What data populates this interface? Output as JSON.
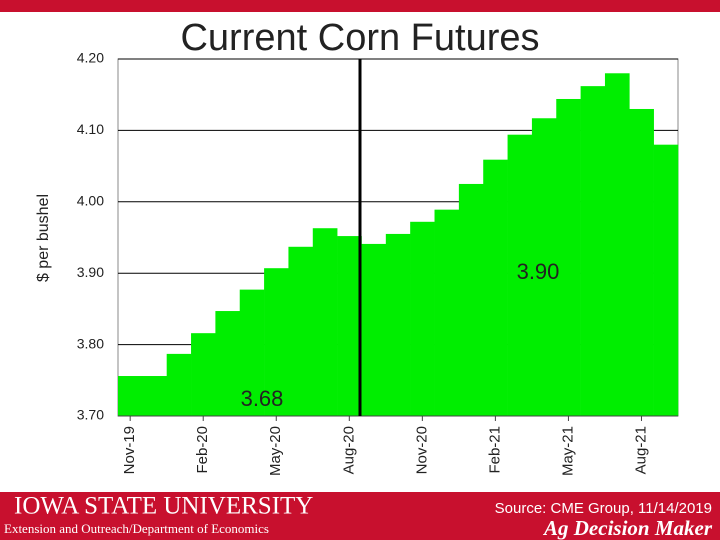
{
  "chart_data": {
    "type": "bar",
    "title": "Current Corn Futures",
    "y_label": "$ per bushel",
    "categories": [
      "Nov-19",
      null,
      null,
      "Feb-20",
      null,
      null,
      "May-20",
      null,
      null,
      "Aug-20",
      null,
      null,
      "Nov-20",
      null,
      null,
      "Feb-21",
      null,
      null,
      "May-21",
      null,
      null,
      "Aug-21",
      null
    ],
    "values": [
      3.756,
      3.756,
      3.787,
      3.816,
      3.847,
      3.877,
      3.907,
      3.937,
      3.963,
      3.952,
      3.941,
      3.955,
      3.972,
      3.989,
      4.025,
      4.059,
      4.094,
      4.117,
      4.144,
      4.162,
      4.18,
      4.13,
      4.08
    ],
    "color": "#00ee00",
    "ylim": [
      3.7,
      4.2
    ],
    "yticks": [
      {
        "value": 3.7,
        "label": "3.70"
      },
      {
        "value": 3.8,
        "label": "3.80"
      },
      {
        "value": 3.9,
        "label": "3.90"
      },
      {
        "value": 4.0,
        "label": "4.00"
      },
      {
        "value": 4.1,
        "label": "4.10"
      },
      {
        "value": 4.2,
        "label": "4.20"
      }
    ],
    "grid": true,
    "annotations": [
      "3.90",
      "3.68"
    ]
  },
  "footer": {
    "university": "IOWA STATE UNIVERSITY",
    "department": "Extension and Outreach/Department of Economics",
    "source": "Source: CME Group, 11/14/2019",
    "brand": "Ag Decision Maker"
  }
}
